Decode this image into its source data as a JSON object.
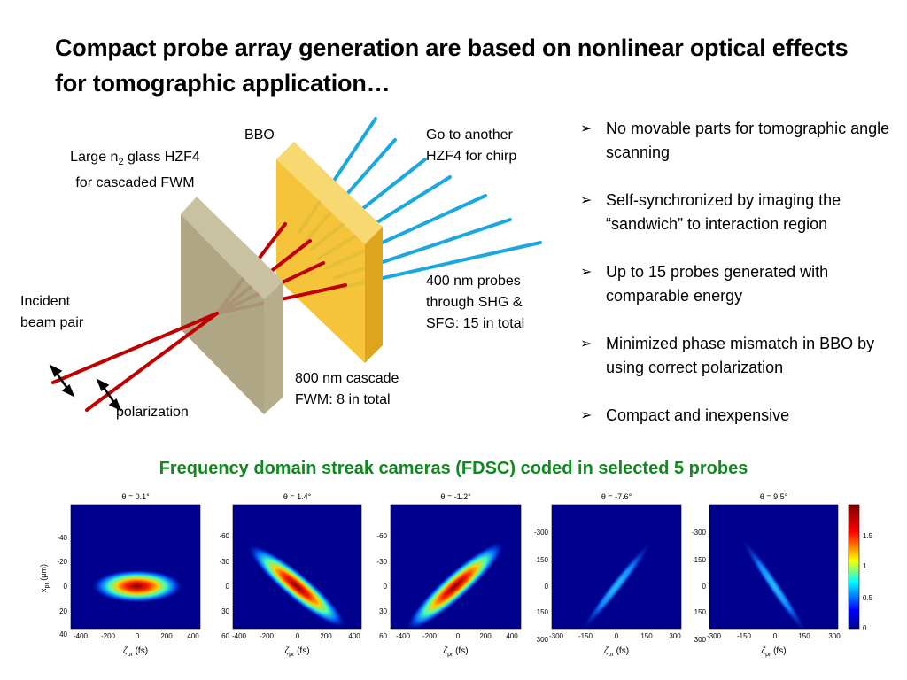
{
  "title": "Compact probe array generation are based on nonlinear optical effects for tomographic application…",
  "diagram": {
    "bbo_label": "BBO",
    "glass_label_1a": "Large n",
    "glass_label_1sub": "2",
    "glass_label_1b": " glass HZF4",
    "glass_label_2": "for cascaded FWM",
    "chirp_label_1": "Go to another",
    "chirp_label_2": "HZF4 for chirp",
    "incident_label_1": "Incident",
    "incident_label_2": "beam pair",
    "probes_label_1": "400 nm probes",
    "probes_label_2": "through SHG &",
    "probes_label_3": "SFG: 15 in total",
    "cascade_label_1": "800 nm cascade",
    "cascade_label_2": "FWM: 8 in total",
    "polarization_label": "polarization",
    "colors": {
      "glass": "#a89f7c",
      "bbo": "#f5bf2a",
      "red_beam": "#c00000",
      "blue_beam": "#1ba8e0"
    }
  },
  "bullets": [
    "No movable parts for tomographic angle scanning",
    "Self-synchronized by imaging the “sandwich” to interaction region",
    "Up to 15 probes generated with comparable energy",
    "Minimized phase mismatch in BBO by using correct polarization",
    "Compact and inexpensive"
  ],
  "bullet_icon": "arrowhead-bullet-icon",
  "subtitle": "Frequency domain streak cameras (FDSC) coded in selected 5 probes",
  "panels": {
    "ylabel_main": "x",
    "ylabel_sub": "pr",
    "ylabel_unit": " (μm)",
    "xlabel_main": "ζ",
    "xlabel_sub": "pr",
    "xlabel_unit": " (fs)",
    "items": [
      {
        "theta": "θ = 0.1°",
        "xticks": [
          "-400",
          "-200",
          "0",
          "200",
          "400"
        ],
        "yticks": [
          "-40",
          "-20",
          "0",
          "20",
          "40"
        ]
      },
      {
        "theta": "θ = 1.4°",
        "xticks": [
          "-400",
          "-200",
          "0",
          "200",
          "400"
        ],
        "yticks": [
          "-60",
          "-30",
          "0",
          "30",
          "60"
        ]
      },
      {
        "theta": "θ = -1.2°",
        "xticks": [
          "-400",
          "-200",
          "0",
          "200",
          "400"
        ],
        "yticks": [
          "-60",
          "-30",
          "0",
          "30",
          "60"
        ]
      },
      {
        "theta": "θ = -7.6°",
        "xticks": [
          "-300",
          "-150",
          "0",
          "150",
          "300"
        ],
        "yticks": [
          "-300",
          "-150",
          "0",
          "150",
          "300"
        ]
      },
      {
        "theta": "θ = 9.5°",
        "xticks": [
          "-300",
          "-150",
          "0",
          "150",
          "300"
        ],
        "yticks": [
          "-300",
          "-150",
          "0",
          "150",
          "300"
        ]
      }
    ],
    "colorbar_ticks": [
      "1.5",
      "1",
      "0.5",
      "0"
    ],
    "colormap": "jet",
    "background_color": "#00008f"
  }
}
